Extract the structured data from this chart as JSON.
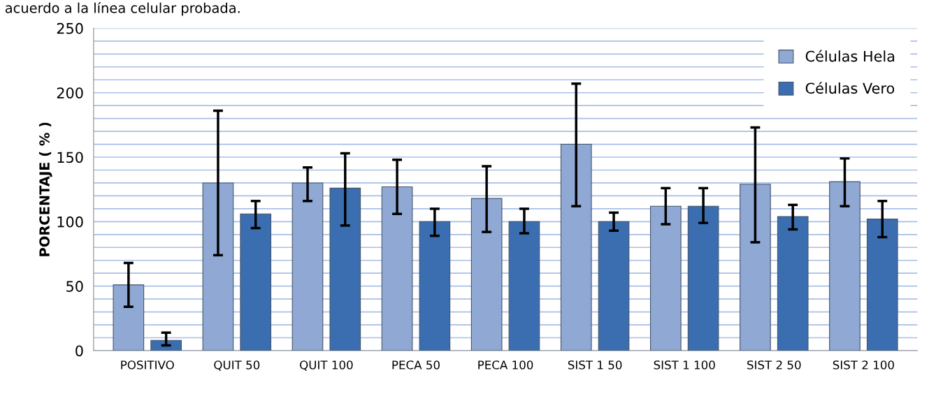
{
  "chart_data": {
    "type": "bar",
    "annotations": [
      "acuerdo a la línea celular probada."
    ],
    "ylabel": "PORCENTAJE ( % )",
    "categories": [
      "POSITIVO",
      "QUIT 50",
      "QUIT 100",
      "PECA 50",
      "PECA 100",
      "SIST 1 50",
      "SIST 1 100",
      "SIST 2 50",
      "SIST 2 100"
    ],
    "series": [
      {
        "name": "Células Hela",
        "color": "#8fa8d4",
        "values": [
          51,
          130,
          130,
          127,
          118,
          160,
          112,
          129,
          131
        ],
        "errors": [
          [
            34,
            68
          ],
          [
            74,
            186
          ],
          [
            116,
            142
          ],
          [
            106,
            148
          ],
          [
            92,
            143
          ],
          [
            112,
            207
          ],
          [
            98,
            126
          ],
          [
            84,
            173
          ],
          [
            112,
            149
          ]
        ]
      },
      {
        "name": "Células Vero",
        "color": "#3a6eb0",
        "values": [
          8,
          106,
          126,
          100,
          100,
          100,
          112,
          104,
          102
        ],
        "errors": [
          [
            4,
            14
          ],
          [
            95,
            116
          ],
          [
            97,
            153
          ],
          [
            89,
            110
          ],
          [
            91,
            110
          ],
          [
            93,
            107
          ],
          [
            99,
            126
          ],
          [
            94,
            113
          ],
          [
            88,
            116
          ]
        ]
      }
    ],
    "ylim": [
      0,
      250
    ],
    "yticks": [
      0,
      {
        "value": 10,
        "label": null
      },
      {
        "value": 20,
        "label": null
      },
      {
        "value": 30,
        "label": null
      },
      {
        "value": 40,
        "label": null
      },
      50,
      {
        "value": 60,
        "label": null
      },
      {
        "value": 70,
        "label": null
      },
      {
        "value": 80,
        "label": null
      },
      {
        "value": 90,
        "label": null
      },
      100,
      {
        "value": 110,
        "label": null
      },
      {
        "value": 120,
        "label": null
      },
      {
        "value": 130,
        "label": null
      },
      {
        "value": 140,
        "label": null
      },
      150,
      {
        "value": 160,
        "label": null
      },
      {
        "value": 170,
        "label": null
      },
      {
        "value": 180,
        "label": null
      },
      {
        "value": 190,
        "label": null
      },
      200,
      {
        "value": 210,
        "label": null
      },
      {
        "value": 220,
        "label": null
      },
      {
        "value": 230,
        "label": null
      },
      {
        "value": 240,
        "label": null
      },
      250
    ],
    "grid": "y",
    "legend": "top right"
  }
}
